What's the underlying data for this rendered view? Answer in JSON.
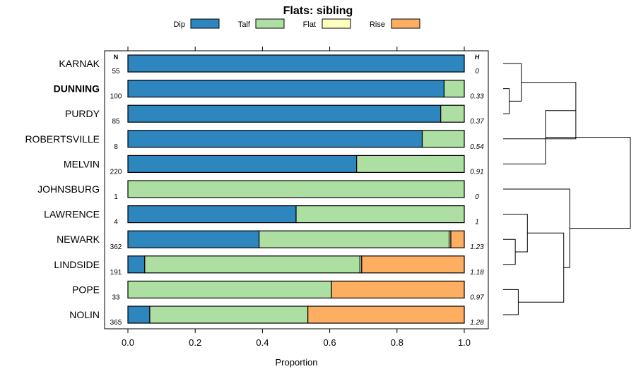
{
  "chart_data": {
    "type": "bar",
    "stacked": true,
    "orientation": "horizontal",
    "title": "Flats: sibling",
    "xlabel": "Proportion",
    "ylabel": "",
    "xlim": [
      0,
      1
    ],
    "xticks": [
      "0.0",
      "0.2",
      "0.4",
      "0.6",
      "0.8",
      "1.0"
    ],
    "xtick_values": [
      0,
      0.2,
      0.4,
      0.6,
      0.8,
      1.0
    ],
    "legend_position": "top",
    "colors": {
      "Dip": "#2e86bf",
      "Talf": "#addfa2",
      "Flat": "#ffffbf",
      "Rise": "#fdae61"
    },
    "n_header": "N",
    "h_header": "H",
    "categories": [
      "KARNAK",
      "DUNNING",
      "PURDY",
      "ROBERTSVILLE",
      "MELVIN",
      "JOHNSBURG",
      "LAWRENCE",
      "NEWARK",
      "LINDSIDE",
      "POPE",
      "NOLIN"
    ],
    "highlighted": [
      "DUNNING"
    ],
    "n": [
      "55",
      "100",
      "85",
      "8",
      "220",
      "1",
      "4",
      "362",
      "191",
      "33",
      "365"
    ],
    "h": [
      "0",
      "0.33",
      "0.37",
      "0.54",
      "0.91",
      "0",
      "1",
      "1.23",
      "1.18",
      "0.97",
      "1.28"
    ],
    "series": [
      {
        "name": "Dip",
        "values": [
          1.0,
          0.94,
          0.93,
          0.875,
          0.68,
          0.0,
          0.5,
          0.39,
          0.05,
          0.0,
          0.065
        ]
      },
      {
        "name": "Talf",
        "values": [
          0.0,
          0.06,
          0.07,
          0.125,
          0.32,
          1.0,
          0.5,
          0.565,
          0.64,
          0.605,
          0.47
        ]
      },
      {
        "name": "Flat",
        "values": [
          0.0,
          0.0,
          0.0,
          0.0,
          0.0,
          0.0,
          0.0,
          0.005,
          0.005,
          0.0,
          0.0
        ]
      },
      {
        "name": "Rise",
        "values": [
          0.0,
          0.0,
          0.0,
          0.0,
          0.0,
          0.0,
          0.0,
          0.04,
          0.305,
          0.395,
          0.465
        ]
      }
    ],
    "dendrogram": [
      {
        "a": 1,
        "b": 2,
        "height": 0.1
      },
      {
        "a": 0,
        "b": 11,
        "height": 0.3
      },
      {
        "a": 9,
        "b": 10,
        "height": 0.25
      },
      {
        "a": 7,
        "b": 8,
        "height": 0.2
      },
      {
        "a": 6,
        "b": 14,
        "height": 0.4
      },
      {
        "a": 13,
        "b": 15,
        "height": 1.0
      },
      {
        "a": 5,
        "b": 16,
        "height": 1.1
      },
      {
        "a": 3,
        "b": 12,
        "height": 1.2
      },
      {
        "a": 4,
        "b": 18,
        "height": 0.7
      },
      {
        "a": 17,
        "b": 19,
        "height": 2.1
      }
    ]
  }
}
